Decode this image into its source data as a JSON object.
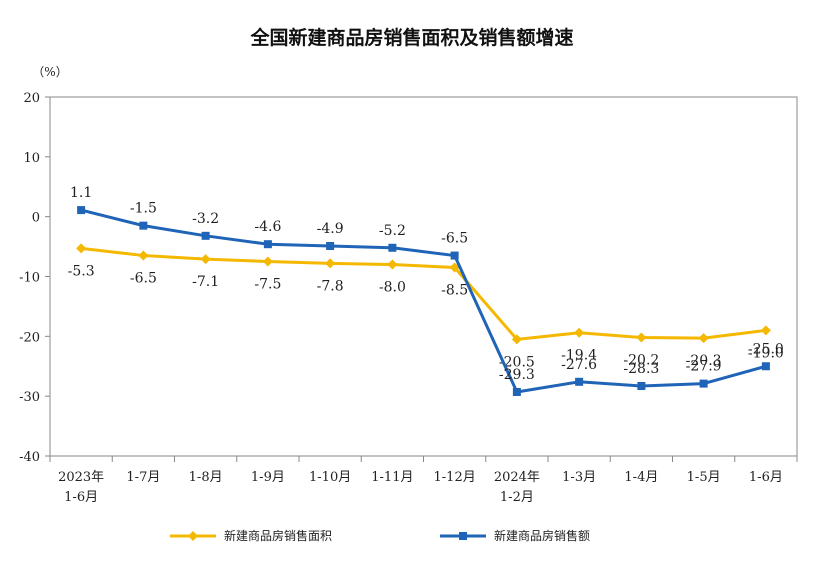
{
  "chart_data": {
    "type": "line",
    "title": "全国新建商品房销售面积及销售额增速",
    "unit": "（%）",
    "xlabel": "",
    "ylabel": "",
    "ylim": [
      -40,
      20
    ],
    "yticks": [
      20,
      10,
      0,
      -10,
      -20,
      -30,
      -40
    ],
    "grid": false,
    "legend_position": "bottom",
    "categories": [
      [
        "2023年",
        "1-6月"
      ],
      [
        "1-7月"
      ],
      [
        "1-8月"
      ],
      [
        "1-9月"
      ],
      [
        "1-10月"
      ],
      [
        "1-11月"
      ],
      [
        "1-12月"
      ],
      [
        "2024年",
        "1-2月"
      ],
      [
        "1-3月"
      ],
      [
        "1-4月"
      ],
      [
        "1-5月"
      ],
      [
        "1-6月"
      ]
    ],
    "series": [
      {
        "name": "新建商品房销售面积",
        "color": "#f5b800",
        "marker": "diamond",
        "label_position": "below",
        "values": [
          -5.3,
          -6.5,
          -7.1,
          -7.5,
          -7.8,
          -8.0,
          -8.5,
          -20.5,
          -19.4,
          -20.2,
          -20.3,
          -19.0
        ],
        "labels": [
          "-5.3",
          "-6.5",
          "-7.1",
          "-7.5",
          "-7.8",
          "-8.0",
          "-8.5",
          "-20.5",
          "-19.4",
          "-20.2",
          "-20.3",
          "-19.0"
        ]
      },
      {
        "name": "新建商品房销售额",
        "color": "#1f64b6",
        "marker": "square",
        "label_position": "above",
        "values": [
          1.1,
          -1.5,
          -3.2,
          -4.6,
          -4.9,
          -5.2,
          -6.5,
          -29.3,
          -27.6,
          -28.3,
          -27.9,
          -25.0
        ],
        "labels": [
          "1.1",
          "-1.5",
          "-3.2",
          "-4.6",
          "-4.9",
          "-5.2",
          "-6.5",
          "-29.3",
          "-27.6",
          "-28.3",
          "-27.9",
          "-25.0"
        ]
      }
    ]
  }
}
